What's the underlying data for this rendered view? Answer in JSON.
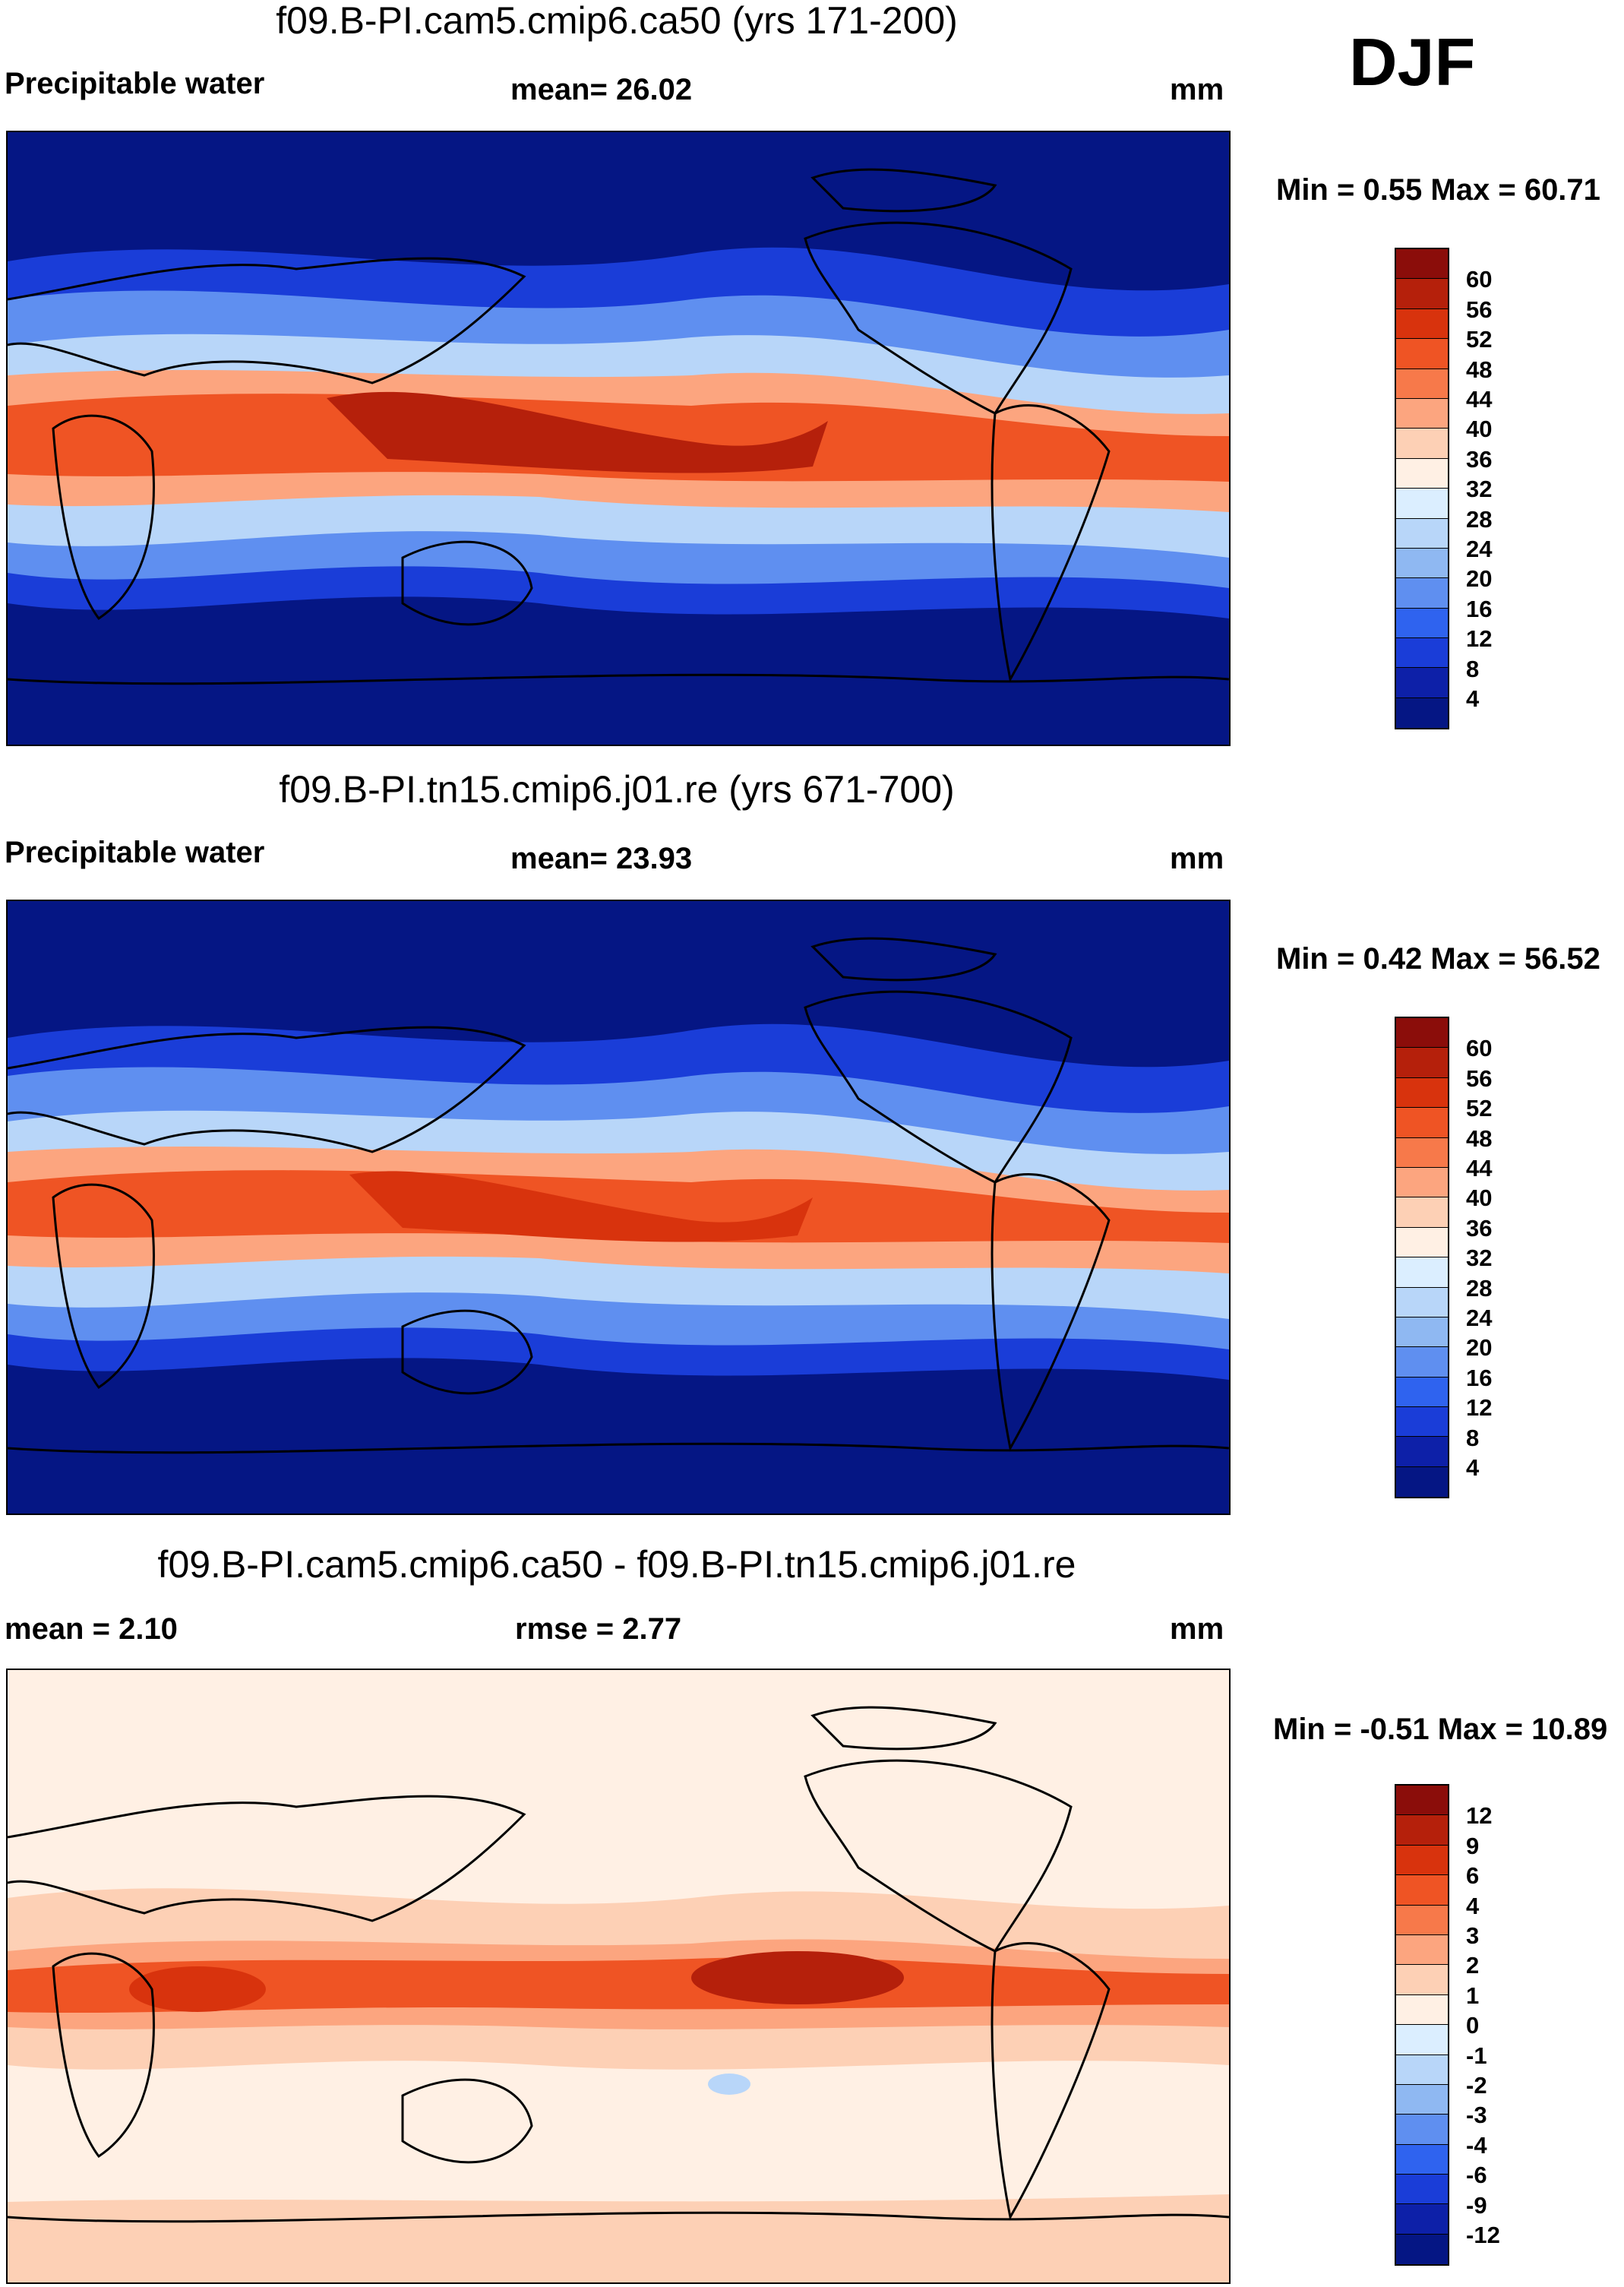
{
  "season": "DJF",
  "panels": [
    {
      "title": "f09.B-PI.cam5.cmip6.ca50 (yrs 171-200)",
      "left_label": "Precipitable water",
      "center_label": "mean=  26.02",
      "units": "mm",
      "minmax": "Min =   0.55 Max =  60.71",
      "cbar": {
        "labels": [
          "60",
          "56",
          "52",
          "48",
          "44",
          "40",
          "36",
          "32",
          "28",
          "24",
          "20",
          "16",
          "12",
          "8",
          "4"
        ],
        "colors": [
          "#8b0d0a",
          "#b5200b",
          "#d8330d",
          "#ef5424",
          "#f7794a",
          "#fca57f",
          "#fdd0b5",
          "#fff0e4",
          "#dbeeff",
          "#b8d6f9",
          "#8fb8f2",
          "#5f8ff0",
          "#2f63ef",
          "#1a3dd8",
          "#0d20a8",
          "#051684"
        ]
      },
      "field": "pw"
    },
    {
      "title": "f09.B-PI.tn15.cmip6.j01.re (yrs 671-700)",
      "left_label": "Precipitable water",
      "center_label": "mean=  23.93",
      "units": "mm",
      "minmax": "Min =   0.42 Max =  56.52",
      "cbar": {
        "labels": [
          "60",
          "56",
          "52",
          "48",
          "44",
          "40",
          "36",
          "32",
          "28",
          "24",
          "20",
          "16",
          "12",
          "8",
          "4"
        ],
        "colors": [
          "#8b0d0a",
          "#b5200b",
          "#d8330d",
          "#ef5424",
          "#f7794a",
          "#fca57f",
          "#fdd0b5",
          "#fff0e4",
          "#dbeeff",
          "#b8d6f9",
          "#8fb8f2",
          "#5f8ff0",
          "#2f63ef",
          "#1a3dd8",
          "#0d20a8",
          "#051684"
        ]
      },
      "field": "pw"
    },
    {
      "title": "f09.B-PI.cam5.cmip6.ca50 - f09.B-PI.tn15.cmip6.j01.re",
      "left_label": "mean =   2.10",
      "center_label": "rmse =   2.77",
      "units": "mm",
      "minmax": "Min =  -0.51 Max =  10.89",
      "cbar": {
        "labels": [
          "12",
          "9",
          "6",
          "4",
          "3",
          "2",
          "1",
          "0",
          "-1",
          "-2",
          "-3",
          "-4",
          "-6",
          "-9",
          "-12"
        ],
        "colors": [
          "#8b0d0a",
          "#b5200b",
          "#d8330d",
          "#ef5424",
          "#f7794a",
          "#fca57f",
          "#fdd0b5",
          "#fff0e4",
          "#dbeeff",
          "#b8d6f9",
          "#8fb8f2",
          "#5f8ff0",
          "#2f63ef",
          "#1a3dd8",
          "#0d20a8",
          "#051684"
        ]
      },
      "field": "diff"
    }
  ]
}
